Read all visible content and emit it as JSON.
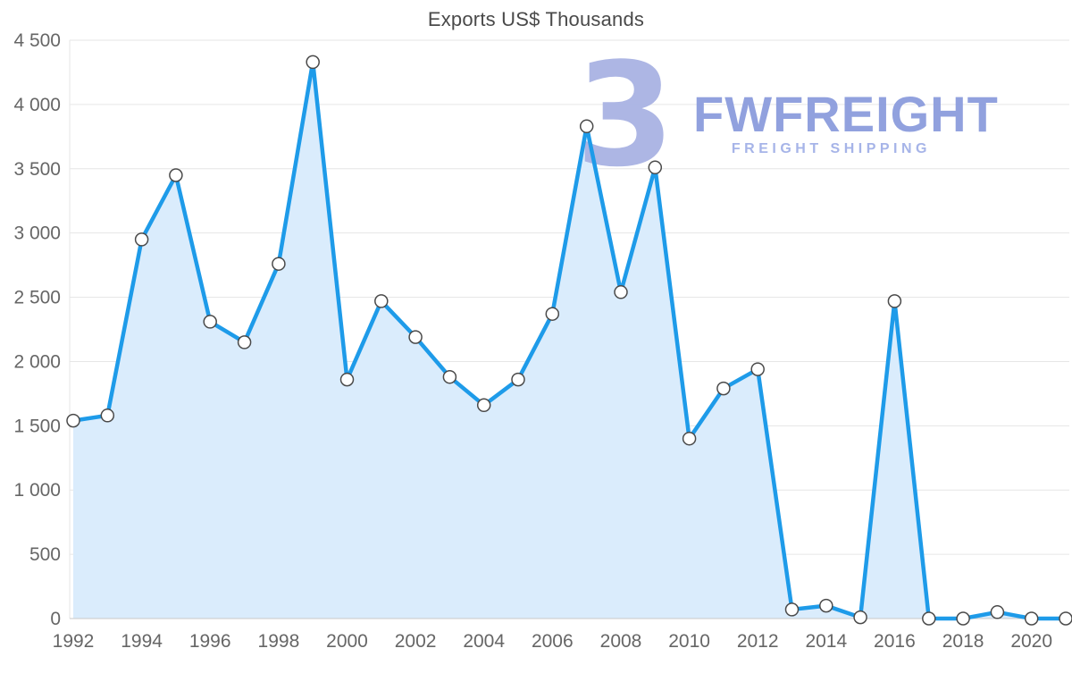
{
  "title": "Exports US$ Thousands",
  "watermark": {
    "icon_glyph": "3",
    "brand": "FWFREIGHT",
    "subtitle": "FREIGHT SHIPPING",
    "icon_color": "#a9b3e3",
    "brand_color": "#8c9ddd",
    "subtitle_color": "#a2b1e7"
  },
  "chart_data": {
    "type": "area",
    "title": "Exports US$ Thousands",
    "x": [
      1992,
      1993,
      1994,
      1995,
      1996,
      1997,
      1998,
      1999,
      2000,
      2001,
      2002,
      2003,
      2004,
      2005,
      2006,
      2007,
      2008,
      2009,
      2010,
      2011,
      2012,
      2013,
      2014,
      2015,
      2016,
      2017,
      2018,
      2019,
      2020,
      2021
    ],
    "values": [
      1540,
      1580,
      2950,
      3450,
      2310,
      2150,
      2760,
      4330,
      1860,
      2470,
      2190,
      1880,
      1660,
      1860,
      2370,
      3830,
      2540,
      3510,
      1400,
      1790,
      1940,
      70,
      100,
      10,
      2470,
      0,
      0,
      50,
      0,
      0
    ],
    "x_tick_labels": [
      "1992",
      "1994",
      "1996",
      "1998",
      "2000",
      "2002",
      "2004",
      "2006",
      "2008",
      "2010",
      "2012",
      "2014",
      "2016",
      "2018",
      "2020"
    ],
    "y_ticks": [
      0,
      500,
      1000,
      1500,
      2000,
      2500,
      3000,
      3500,
      4000,
      4500
    ],
    "y_tick_labels": [
      "0",
      "500",
      "1 000",
      "1 500",
      "2 000",
      "2 500",
      "3 000",
      "3 500",
      "4 000",
      "4 500"
    ],
    "ylim": [
      0,
      4500
    ],
    "xlabel": "",
    "ylabel": "",
    "grid": true,
    "legend": false,
    "colors": {
      "line": "#1e9be9",
      "area": "#daecfc",
      "marker_fill": "#ffffff",
      "marker_stroke": "#4a4a4a",
      "grid": "#e6e6e6",
      "axis_line": "#c9c9c9",
      "axis_text": "#666666"
    }
  }
}
